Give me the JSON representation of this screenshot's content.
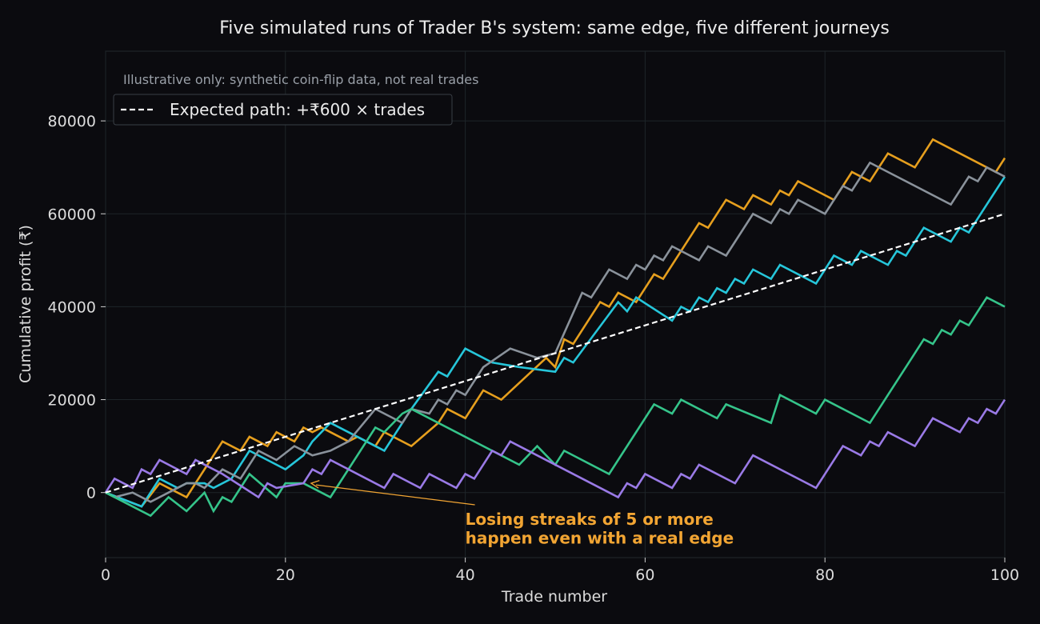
{
  "chart_data": {
    "type": "line",
    "title": "Five simulated runs of Trader B's system: same edge, five different journeys",
    "subtitle": "Illustrative only: synthetic coin-flip data, not real trades",
    "xlabel": "Trade number",
    "ylabel": "Cumulative profit (₹)",
    "xlim": [
      0,
      100
    ],
    "ylim": [
      -14000,
      95000
    ],
    "x_ticks": [
      0,
      20,
      40,
      60,
      80,
      100
    ],
    "y_ticks": [
      0,
      20000,
      40000,
      60000,
      80000
    ],
    "grid": true,
    "legend_position": "top-left",
    "legend_entries": [
      "Expected path: +₹600 × trades"
    ],
    "expected": {
      "label": "Expected path: +₹600 × trades",
      "color": "#ffffff",
      "points": [
        [
          0,
          0
        ],
        [
          100,
          60000
        ]
      ]
    },
    "series": [
      {
        "color": "#e69f1e",
        "points": [
          [
            0,
            0
          ],
          [
            4,
            -3000
          ],
          [
            6,
            2000
          ],
          [
            9,
            -1000
          ],
          [
            13,
            11000
          ],
          [
            15,
            9000
          ],
          [
            16,
            12000
          ],
          [
            17,
            11000
          ],
          [
            18,
            10000
          ],
          [
            19,
            13000
          ],
          [
            20,
            12000
          ],
          [
            21,
            11000
          ],
          [
            22,
            14000
          ],
          [
            23,
            13000
          ],
          [
            24,
            14000
          ],
          [
            25,
            13000
          ],
          [
            27,
            11000
          ],
          [
            28,
            12000
          ],
          [
            30,
            10000
          ],
          [
            31,
            13000
          ],
          [
            34,
            10000
          ],
          [
            37,
            15000
          ],
          [
            38,
            18000
          ],
          [
            40,
            16000
          ],
          [
            42,
            22000
          ],
          [
            44,
            20000
          ],
          [
            49,
            29000
          ],
          [
            50,
            27000
          ],
          [
            51,
            33000
          ],
          [
            52,
            32000
          ],
          [
            55,
            41000
          ],
          [
            56,
            40000
          ],
          [
            57,
            43000
          ],
          [
            59,
            41000
          ],
          [
            61,
            47000
          ],
          [
            62,
            46000
          ],
          [
            66,
            58000
          ],
          [
            67,
            57000
          ],
          [
            69,
            63000
          ],
          [
            71,
            61000
          ],
          [
            72,
            64000
          ],
          [
            74,
            62000
          ],
          [
            75,
            65000
          ],
          [
            76,
            64000
          ],
          [
            77,
            67000
          ],
          [
            81,
            63000
          ],
          [
            83,
            69000
          ],
          [
            84,
            68000
          ],
          [
            85,
            67000
          ],
          [
            87,
            73000
          ],
          [
            90,
            70000
          ],
          [
            92,
            76000
          ],
          [
            99,
            69000
          ],
          [
            100,
            72000
          ]
        ]
      },
      {
        "color": "#26c6da",
        "points": [
          [
            0,
            0
          ],
          [
            4,
            -3000
          ],
          [
            6,
            3000
          ],
          [
            8,
            1000
          ],
          [
            9,
            2000
          ],
          [
            11,
            2000
          ],
          [
            12,
            1000
          ],
          [
            14,
            3000
          ],
          [
            16,
            9000
          ],
          [
            19,
            6000
          ],
          [
            20,
            5000
          ],
          [
            22,
            8000
          ],
          [
            23,
            11000
          ],
          [
            25,
            15000
          ],
          [
            27,
            13000
          ],
          [
            29,
            11000
          ],
          [
            31,
            9000
          ],
          [
            34,
            18000
          ],
          [
            37,
            26000
          ],
          [
            38,
            25000
          ],
          [
            40,
            31000
          ],
          [
            43,
            28000
          ],
          [
            46,
            27000
          ],
          [
            50,
            26000
          ],
          [
            51,
            29000
          ],
          [
            52,
            28000
          ],
          [
            57,
            41000
          ],
          [
            58,
            39000
          ],
          [
            59,
            42000
          ],
          [
            63,
            37000
          ],
          [
            64,
            40000
          ],
          [
            65,
            39000
          ],
          [
            66,
            42000
          ],
          [
            67,
            41000
          ],
          [
            68,
            44000
          ],
          [
            69,
            43000
          ],
          [
            70,
            46000
          ],
          [
            71,
            45000
          ],
          [
            72,
            48000
          ],
          [
            74,
            46000
          ],
          [
            75,
            49000
          ],
          [
            79,
            45000
          ],
          [
            81,
            51000
          ],
          [
            83,
            49000
          ],
          [
            84,
            52000
          ],
          [
            87,
            49000
          ],
          [
            88,
            52000
          ],
          [
            89,
            51000
          ],
          [
            91,
            57000
          ],
          [
            94,
            54000
          ],
          [
            95,
            57000
          ],
          [
            96,
            56000
          ],
          [
            98,
            62000
          ],
          [
            100,
            68000
          ]
        ]
      },
      {
        "color": "#8a929b",
        "points": [
          [
            0,
            0
          ],
          [
            1,
            -1000
          ],
          [
            3,
            0
          ],
          [
            5,
            -2000
          ],
          [
            9,
            2000
          ],
          [
            10,
            2000
          ],
          [
            11,
            1000
          ],
          [
            13,
            5000
          ],
          [
            15,
            3000
          ],
          [
            17,
            9000
          ],
          [
            19,
            7000
          ],
          [
            21,
            10000
          ],
          [
            23,
            8000
          ],
          [
            25,
            9000
          ],
          [
            27,
            11000
          ],
          [
            30,
            18000
          ],
          [
            33,
            15000
          ],
          [
            34,
            18000
          ],
          [
            36,
            17000
          ],
          [
            37,
            20000
          ],
          [
            38,
            19000
          ],
          [
            39,
            22000
          ],
          [
            40,
            21000
          ],
          [
            42,
            27000
          ],
          [
            45,
            31000
          ],
          [
            48,
            29000
          ],
          [
            50,
            30000
          ],
          [
            53,
            43000
          ],
          [
            54,
            42000
          ],
          [
            56,
            48000
          ],
          [
            58,
            46000
          ],
          [
            59,
            49000
          ],
          [
            60,
            48000
          ],
          [
            61,
            51000
          ],
          [
            62,
            50000
          ],
          [
            63,
            53000
          ],
          [
            66,
            50000
          ],
          [
            67,
            53000
          ],
          [
            69,
            51000
          ],
          [
            72,
            60000
          ],
          [
            74,
            58000
          ],
          [
            75,
            61000
          ],
          [
            76,
            60000
          ],
          [
            77,
            63000
          ],
          [
            80,
            60000
          ],
          [
            82,
            66000
          ],
          [
            83,
            65000
          ],
          [
            85,
            71000
          ],
          [
            94,
            62000
          ],
          [
            96,
            68000
          ],
          [
            97,
            67000
          ],
          [
            98,
            70000
          ],
          [
            100,
            68000
          ]
        ]
      },
      {
        "color": "#35c48a",
        "points": [
          [
            0,
            0
          ],
          [
            5,
            -5000
          ],
          [
            7,
            -1000
          ],
          [
            9,
            -4000
          ],
          [
            11,
            0
          ],
          [
            12,
            -4000
          ],
          [
            13,
            -1000
          ],
          [
            14,
            -2000
          ],
          [
            16,
            4000
          ],
          [
            19,
            -1000
          ],
          [
            20,
            2000
          ],
          [
            22,
            2000
          ],
          [
            25,
            -1000
          ],
          [
            30,
            14000
          ],
          [
            31,
            13000
          ],
          [
            33,
            17000
          ],
          [
            34,
            18000
          ],
          [
            46,
            6000
          ],
          [
            48,
            10000
          ],
          [
            50,
            6000
          ],
          [
            51,
            9000
          ],
          [
            56,
            4000
          ],
          [
            61,
            19000
          ],
          [
            63,
            17000
          ],
          [
            64,
            20000
          ],
          [
            68,
            16000
          ],
          [
            69,
            19000
          ],
          [
            74,
            15000
          ],
          [
            75,
            21000
          ],
          [
            79,
            17000
          ],
          [
            80,
            20000
          ],
          [
            85,
            15000
          ],
          [
            91,
            33000
          ],
          [
            92,
            32000
          ],
          [
            93,
            35000
          ],
          [
            94,
            34000
          ],
          [
            95,
            37000
          ],
          [
            96,
            36000
          ],
          [
            98,
            42000
          ],
          [
            100,
            40000
          ]
        ]
      },
      {
        "color": "#9a7ae6",
        "points": [
          [
            0,
            0
          ],
          [
            1,
            3000
          ],
          [
            3,
            1000
          ],
          [
            4,
            5000
          ],
          [
            5,
            4000
          ],
          [
            6,
            7000
          ],
          [
            9,
            4000
          ],
          [
            10,
            7000
          ],
          [
            13,
            4000
          ],
          [
            17,
            -1000
          ],
          [
            18,
            2000
          ],
          [
            19,
            1000
          ],
          [
            22,
            2000
          ],
          [
            23,
            5000
          ],
          [
            24,
            4000
          ],
          [
            25,
            7000
          ],
          [
            31,
            1000
          ],
          [
            32,
            4000
          ],
          [
            35,
            1000
          ],
          [
            36,
            4000
          ],
          [
            39,
            1000
          ],
          [
            40,
            4000
          ],
          [
            41,
            3000
          ],
          [
            43,
            9000
          ],
          [
            44,
            8000
          ],
          [
            45,
            11000
          ],
          [
            56,
            0
          ],
          [
            57,
            -1000
          ],
          [
            58,
            2000
          ],
          [
            59,
            1000
          ],
          [
            60,
            4000
          ],
          [
            63,
            1000
          ],
          [
            64,
            4000
          ],
          [
            65,
            3000
          ],
          [
            66,
            6000
          ],
          [
            70,
            2000
          ],
          [
            72,
            8000
          ],
          [
            79,
            1000
          ],
          [
            82,
            10000
          ],
          [
            84,
            8000
          ],
          [
            85,
            11000
          ],
          [
            86,
            10000
          ],
          [
            87,
            13000
          ],
          [
            90,
            10000
          ],
          [
            92,
            16000
          ],
          [
            95,
            13000
          ],
          [
            96,
            16000
          ],
          [
            97,
            15000
          ],
          [
            98,
            18000
          ],
          [
            99,
            17000
          ],
          [
            100,
            20000
          ]
        ]
      }
    ],
    "annotation": {
      "text_lines": [
        "Losing streaks of 5 or more",
        "happen even with a real edge"
      ],
      "color": "#f2a533",
      "point": [
        22.5,
        2000
      ],
      "text_anchor": [
        40,
        -9000
      ]
    }
  }
}
